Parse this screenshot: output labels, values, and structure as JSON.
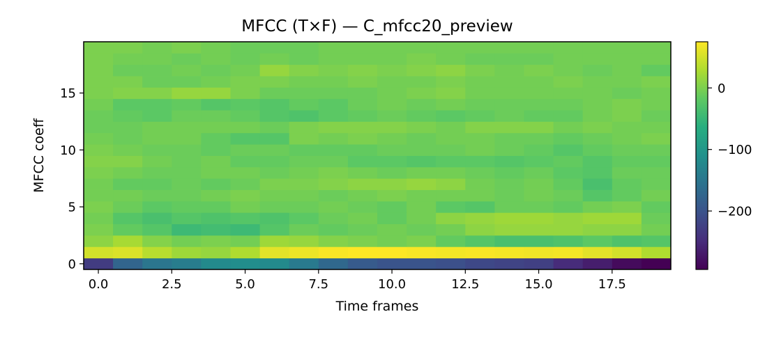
{
  "chart_data": {
    "type": "heatmap",
    "title": "MFCC (T×F) — C_mfcc20_preview",
    "xlabel": "Time frames",
    "ylabel": "MFCC coeff",
    "xlim": [
      -0.5,
      19.5
    ],
    "ylim": [
      -0.5,
      19.5
    ],
    "x_ticks": [
      0.0,
      2.5,
      5.0,
      7.5,
      10.0,
      12.5,
      15.0,
      17.5
    ],
    "x_tick_labels": [
      "0.0",
      "2.5",
      "5.0",
      "7.5",
      "10.0",
      "12.5",
      "15.0",
      "17.5"
    ],
    "y_ticks": [
      0,
      5,
      10,
      15
    ],
    "y_tick_labels": [
      "0",
      "5",
      "10",
      "15"
    ],
    "colormap": "viridis",
    "colorbar": {
      "vmin": -295,
      "vmax": 75,
      "ticks": [
        0,
        -100,
        -200
      ],
      "tick_labels": [
        "0",
        "−100",
        "−200"
      ]
    },
    "x_frames": [
      0,
      1,
      2,
      3,
      4,
      5,
      6,
      7,
      8,
      9,
      10,
      11,
      12,
      13,
      14,
      15,
      16,
      17,
      18,
      19
    ],
    "y_coeffs": [
      0,
      1,
      2,
      3,
      4,
      5,
      6,
      7,
      8,
      9,
      10,
      11,
      12,
      13,
      14,
      15,
      16,
      17,
      18,
      19
    ],
    "values": [
      [
        -230,
        -175,
        -150,
        -140,
        -120,
        -115,
        -120,
        -145,
        -170,
        -190,
        -200,
        -200,
        -205,
        -215,
        -220,
        -225,
        -250,
        -265,
        -285,
        -295
      ],
      [
        50,
        55,
        35,
        20,
        15,
        30,
        60,
        65,
        72,
        75,
        75,
        72,
        70,
        72,
        70,
        68,
        70,
        60,
        50,
        30
      ],
      [
        10,
        25,
        5,
        -5,
        0,
        -5,
        20,
        15,
        5,
        0,
        -5,
        0,
        -15,
        -25,
        -35,
        -35,
        -30,
        -20,
        -30,
        -25
      ],
      [
        0,
        -15,
        -25,
        -45,
        -40,
        -45,
        -25,
        -10,
        -15,
        -10,
        -5,
        -10,
        -5,
        10,
        15,
        15,
        15,
        10,
        10,
        -5
      ],
      [
        -5,
        -25,
        -35,
        -25,
        -30,
        -25,
        -30,
        -20,
        -10,
        -5,
        -15,
        -5,
        10,
        15,
        20,
        20,
        15,
        20,
        20,
        -10
      ],
      [
        0,
        -10,
        -20,
        -15,
        -15,
        -5,
        -10,
        -10,
        -5,
        -10,
        -15,
        -5,
        -20,
        -25,
        -10,
        -10,
        -15,
        -5,
        0,
        -15
      ],
      [
        -5,
        -5,
        -10,
        -10,
        -5,
        0,
        -5,
        -5,
        -10,
        -5,
        0,
        -5,
        -5,
        -5,
        -10,
        -5,
        -10,
        -25,
        -15,
        -5
      ],
      [
        -5,
        -15,
        -15,
        -10,
        -15,
        -10,
        0,
        0,
        5,
        10,
        10,
        15,
        10,
        -5,
        -10,
        -5,
        -15,
        -35,
        -15,
        -10
      ],
      [
        0,
        -5,
        -10,
        -10,
        -5,
        -5,
        -10,
        -5,
        0,
        -5,
        -10,
        -5,
        -5,
        -10,
        -15,
        -10,
        -20,
        -25,
        -10,
        -10
      ],
      [
        5,
        5,
        -5,
        -10,
        -5,
        -15,
        -15,
        -10,
        -10,
        -20,
        -20,
        -25,
        -20,
        -20,
        -25,
        -20,
        -15,
        -25,
        -15,
        -15
      ],
      [
        0,
        -5,
        -10,
        -10,
        -15,
        -10,
        -10,
        -15,
        -15,
        -15,
        -10,
        -10,
        -10,
        -5,
        -10,
        -15,
        -25,
        -15,
        -10,
        -10
      ],
      [
        -5,
        -10,
        -5,
        -5,
        -15,
        -25,
        -25,
        0,
        -5,
        0,
        -5,
        -10,
        -5,
        -5,
        -10,
        -10,
        -15,
        -10,
        -5,
        0
      ],
      [
        -10,
        -10,
        -5,
        -5,
        -5,
        -5,
        -10,
        0,
        5,
        5,
        5,
        0,
        -5,
        5,
        5,
        5,
        -5,
        0,
        -5,
        -5
      ],
      [
        -10,
        -15,
        -20,
        -10,
        -10,
        -15,
        -25,
        -30,
        -20,
        -15,
        -10,
        -15,
        -20,
        -15,
        -10,
        -15,
        -15,
        -5,
        0,
        -10
      ],
      [
        -5,
        -20,
        -20,
        -15,
        -25,
        -20,
        -25,
        -15,
        -20,
        -10,
        -5,
        -10,
        -5,
        -10,
        -10,
        -10,
        -10,
        -5,
        0,
        -5
      ],
      [
        0,
        5,
        5,
        15,
        15,
        0,
        -10,
        -10,
        -10,
        -10,
        -5,
        0,
        5,
        -5,
        -5,
        -5,
        -5,
        -5,
        -10,
        -5
      ],
      [
        0,
        0,
        -10,
        -10,
        -5,
        0,
        0,
        -5,
        -5,
        0,
        -5,
        -5,
        0,
        -5,
        -5,
        -5,
        0,
        -5,
        -5,
        0
      ],
      [
        0,
        -10,
        -10,
        -5,
        -10,
        -5,
        15,
        5,
        0,
        5,
        0,
        5,
        10,
        0,
        -5,
        0,
        -5,
        -10,
        -5,
        -15
      ],
      [
        0,
        -5,
        -5,
        -10,
        -5,
        -10,
        -5,
        -10,
        -5,
        -5,
        -5,
        0,
        -5,
        -10,
        -10,
        -10,
        -5,
        -5,
        -5,
        -5
      ],
      [
        0,
        0,
        -5,
        0,
        -5,
        -10,
        -10,
        -10,
        -5,
        -5,
        -5,
        -5,
        -5,
        -5,
        -5,
        -5,
        -5,
        -5,
        -5,
        -5
      ]
    ]
  }
}
